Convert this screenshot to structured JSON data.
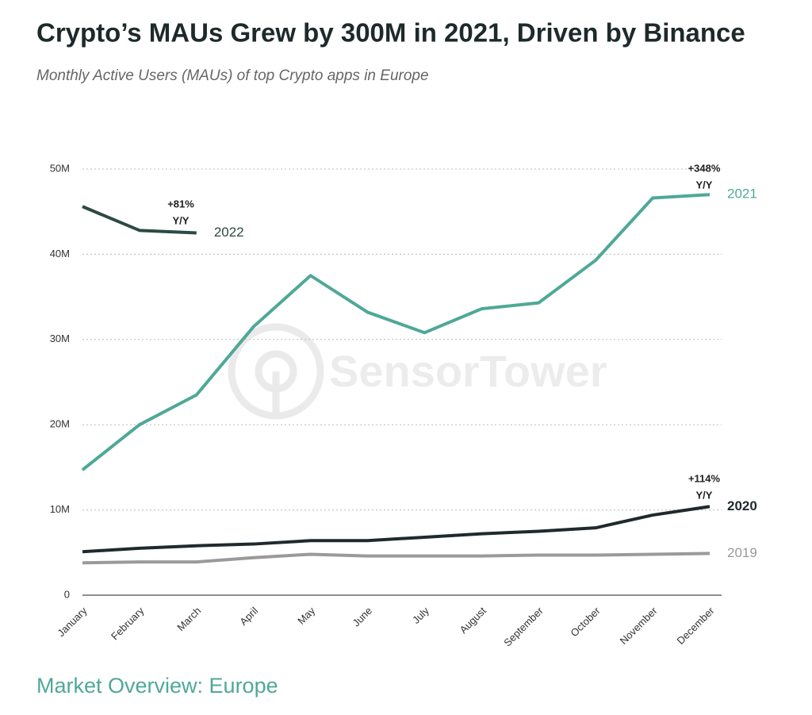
{
  "chart_data": {
    "type": "line",
    "title": "Crypto’s MAUs Grew by 300M in 2021, Driven by Binance",
    "subtitle": "Monthly Active Users (MAUs) of top Crypto apps in Europe",
    "watermark": "SensorTower",
    "footer": "Market Overview: Europe",
    "categories": [
      "January",
      "February",
      "March",
      "April",
      "May",
      "June",
      "July",
      "August",
      "September",
      "October",
      "November",
      "December"
    ],
    "series": [
      {
        "name": "2022",
        "color": "#2d4a44",
        "values": [
          45.6,
          42.8,
          42.5,
          null,
          null,
          null,
          null,
          null,
          null,
          null,
          null,
          null
        ]
      },
      {
        "name": "2021",
        "color": "#4fa898",
        "values": [
          14.7,
          20.0,
          23.5,
          31.5,
          37.5,
          33.2,
          30.8,
          33.6,
          34.3,
          39.3,
          46.6,
          47.0
        ]
      },
      {
        "name": "2020",
        "color": "#1f2a2c",
        "values": [
          5.1,
          5.5,
          5.8,
          6.0,
          6.4,
          6.4,
          6.8,
          7.2,
          7.5,
          7.9,
          9.4,
          10.4
        ]
      },
      {
        "name": "2019",
        "color": "#9a9a9a",
        "values": [
          3.8,
          3.9,
          3.9,
          4.4,
          4.8,
          4.6,
          4.6,
          4.6,
          4.7,
          4.7,
          4.8,
          4.9
        ]
      }
    ],
    "annotations": [
      {
        "lines": [
          "+81%",
          "Y/Y"
        ]
      },
      {
        "lines": [
          "+348%",
          "Y/Y"
        ]
      },
      {
        "lines": [
          "+114%",
          "Y/Y"
        ]
      }
    ],
    "ylim": [
      0,
      50
    ],
    "yticks": [
      0,
      {
        "value": 10,
        "label": "10M"
      },
      {
        "value": 20,
        "label": "20M"
      },
      {
        "value": 30,
        "label": "30M"
      },
      {
        "value": 40,
        "label": "40M"
      },
      {
        "value": 50,
        "label": "50M"
      }
    ],
    "grid": true
  }
}
